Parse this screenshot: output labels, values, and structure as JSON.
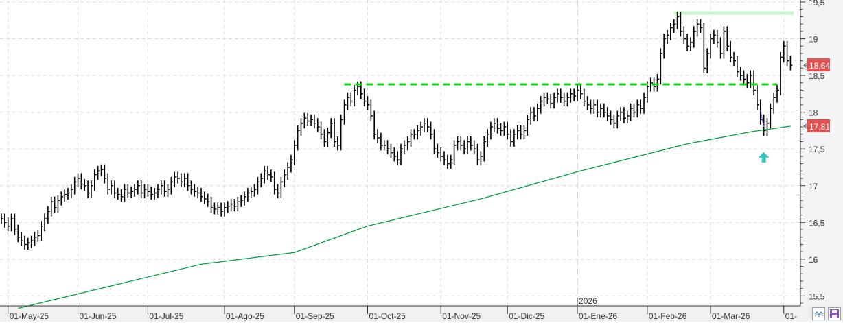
{
  "chart_data": {
    "type": "ohlc-bar",
    "title": "",
    "xlabel": "",
    "ylabel": "",
    "ylim": [
      15.3,
      19.52
    ],
    "grid": true,
    "y_ticks": [
      "19,5",
      "19",
      "18,5",
      "18",
      "17,5",
      "17",
      "16,5",
      "16",
      "15,5"
    ],
    "y_tick_values": [
      19.5,
      19,
      18.5,
      18,
      17.5,
      17,
      16.5,
      16,
      15.5
    ],
    "x_ticks": [
      {
        "label": "01-May-25",
        "bar": 2
      },
      {
        "label": "01-Jun-25",
        "bar": 23
      },
      {
        "label": "01-Jul-25",
        "bar": 44
      },
      {
        "label": "01-Ago-25",
        "bar": 67
      },
      {
        "label": "01-Sep-25",
        "bar": 88
      },
      {
        "label": "01-Oct-25",
        "bar": 110
      },
      {
        "label": "01-Nov-25",
        "bar": 132
      },
      {
        "label": "01-Dic-25",
        "bar": 152
      },
      {
        "label": "01-Ene-26",
        "bar": 173
      },
      {
        "label": "01-Feb-26",
        "bar": 194
      },
      {
        "label": "01-Mar-26",
        "bar": 213
      },
      {
        "label": "01-",
        "bar": 235
      }
    ],
    "year_marker": {
      "label": "2026",
      "bar": 173
    },
    "closes": [
      16.55,
      16.5,
      16.45,
      16.55,
      16.4,
      16.3,
      16.25,
      16.2,
      16.22,
      16.25,
      16.3,
      16.32,
      16.45,
      16.55,
      16.65,
      16.78,
      16.7,
      16.8,
      16.85,
      16.88,
      16.9,
      16.95,
      17.05,
      17.1,
      17.02,
      17.0,
      16.9,
      17.0,
      17.15,
      17.2,
      17.22,
      17.1,
      16.95,
      17.0,
      16.9,
      16.88,
      16.85,
      16.95,
      16.9,
      16.92,
      16.95,
      17.0,
      16.9,
      16.95,
      16.92,
      16.88,
      16.9,
      16.95,
      17.0,
      16.92,
      16.95,
      17.05,
      17.12,
      17.1,
      17.05,
      17.1,
      17.0,
      16.95,
      16.92,
      16.9,
      16.85,
      16.82,
      16.78,
      16.7,
      16.68,
      16.7,
      16.65,
      16.7,
      16.72,
      16.75,
      16.72,
      16.78,
      16.8,
      16.85,
      16.9,
      16.92,
      16.95,
      17.05,
      17.1,
      17.2,
      17.15,
      17.12,
      16.95,
      16.9,
      17.05,
      17.15,
      17.25,
      17.35,
      17.55,
      17.75,
      17.85,
      17.92,
      17.88,
      17.9,
      17.85,
      17.8,
      17.7,
      17.6,
      17.72,
      17.85,
      17.6,
      17.55,
      17.9,
      18.1,
      18.2,
      18.15,
      18.3,
      18.35,
      18.25,
      18.15,
      18.1,
      17.95,
      17.7,
      17.65,
      17.55,
      17.55,
      17.5,
      17.45,
      17.4,
      17.35,
      17.5,
      17.55,
      17.6,
      17.7,
      17.7,
      17.75,
      17.8,
      17.85,
      17.8,
      17.7,
      17.5,
      17.45,
      17.4,
      17.35,
      17.3,
      17.35,
      17.55,
      17.6,
      17.55,
      17.5,
      17.6,
      17.55,
      17.5,
      17.35,
      17.4,
      17.6,
      17.7,
      17.8,
      17.85,
      17.78,
      17.75,
      17.8,
      17.7,
      17.6,
      17.7,
      17.75,
      17.7,
      17.75,
      17.9,
      18.0,
      17.95,
      18.05,
      18.15,
      18.2,
      18.18,
      18.12,
      18.2,
      18.25,
      18.2,
      18.15,
      18.2,
      18.25,
      18.22,
      18.3,
      18.25,
      18.15,
      18.1,
      18.05,
      18.1,
      18.0,
      18.05,
      18.0,
      17.95,
      17.9,
      17.85,
      17.95,
      18.0,
      17.92,
      17.95,
      18.05,
      18.0,
      18.1,
      18.05,
      18.2,
      18.35,
      18.4,
      18.35,
      18.45,
      18.8,
      19.0,
      19.05,
      19.15,
      19.2,
      19.3,
      19.1,
      19.0,
      18.9,
      18.95,
      19.1,
      19.2,
      19.15,
      18.6,
      18.8,
      19.0,
      19.05,
      18.95,
      18.8,
      19.1,
      18.9,
      18.75,
      18.7,
      18.55,
      18.5,
      18.45,
      18.4,
      18.5,
      18.3,
      18.1,
      17.9,
      17.75,
      17.85,
      18.05,
      18.2,
      18.3,
      18.75,
      18.9,
      18.7,
      18.64
    ],
    "moving_average": {
      "color": "#00a040",
      "points": [
        [
          5,
          15.33
        ],
        [
          60,
          15.93
        ],
        [
          88,
          16.09
        ],
        [
          110,
          16.45
        ],
        [
          144,
          16.82
        ],
        [
          173,
          17.19
        ],
        [
          206,
          17.57
        ],
        [
          226,
          17.74
        ],
        [
          237,
          17.81
        ]
      ]
    },
    "resistance_line": {
      "value": 18.38,
      "from_bar": 103,
      "to_bar": 233,
      "color": "#00e000",
      "style": "dashed"
    },
    "high_band": {
      "value": 19.35,
      "from_bar": 202,
      "to_bar": 238,
      "color": "#c8f8c8"
    },
    "trend_segment": {
      "from": [
        228,
        18.03
      ],
      "to": [
        229,
        17.8
      ],
      "color": "#7a5cff"
    },
    "signal_arrow": {
      "bar": 229,
      "value": 17.4,
      "direction": "up",
      "color": "#33c6c6"
    },
    "price_labels": [
      {
        "label": "18,64",
        "value": 18.64,
        "color": "#e05252"
      },
      {
        "label": "17,81",
        "value": 17.81,
        "color": "#e05252"
      }
    ]
  },
  "toolbar": {
    "chart_icon": "wave-chart-icon",
    "save_icon": "floppy-disk-icon"
  }
}
